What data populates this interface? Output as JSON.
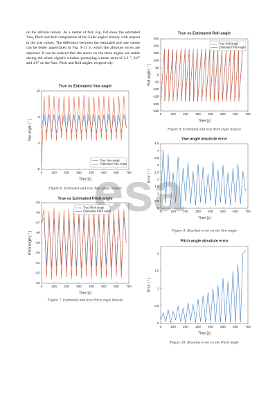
{
  "paragraph": "on the attitude history. As a matter of fact, Fig. 6-8 show the estimated Yaw, Pitch and Roll components of the Euler angles' history with respect to the true values. The difference between the estimated and true values can be better appreciated in Fig. 9-11 in which the absolute errors are depicted. It can be noticed that the errors on the three angles are stable during the whole signal's window portraying a mean error of 2.1 °, 0.6° and 4.9° on the Yaw, Pitch and Roll angles, respectively.",
  "watermark": "esa",
  "chart_data": [
    {
      "type": "line",
      "title": "True vs Estimated Yaw angle",
      "xlabel": "Time [s]",
      "ylabel": "Yaw angle [ ° ]",
      "caption": "Figure 6. Estimated and true Yaw angle history",
      "legend": "lower right",
      "x": [
        0,
        20,
        40,
        60,
        80,
        100,
        120,
        140,
        160,
        180,
        200,
        220,
        240,
        260,
        280,
        300,
        320,
        340,
        360,
        380,
        400,
        420,
        440,
        460,
        480,
        500,
        520,
        540,
        560,
        580,
        600,
        620,
        640,
        660,
        680
      ],
      "series": [
        {
          "name": "True Yaw angle",
          "color": "#3d7fc4",
          "values": [
            3,
            5.5,
            2,
            5.6,
            2.2,
            5.5,
            2,
            5.4,
            2.3,
            5.5,
            2.1,
            5.6,
            2,
            5.5,
            2.2,
            5.4,
            2,
            5.5,
            2.1,
            5.6,
            2.2,
            5.5,
            2,
            5.4,
            2.3,
            5.5,
            2.1,
            5.6,
            2,
            5.5,
            2.2,
            5.4,
            2,
            5.5,
            3
          ]
        },
        {
          "name": "Estimated Yaw Angle",
          "color": "#e0633a",
          "values": [
            -4,
            9,
            0.5,
            9.2,
            0.8,
            9,
            0.5,
            8.8,
            1,
            9,
            0.6,
            9.1,
            0.5,
            8.9,
            0.8,
            9,
            0.5,
            9.2,
            0.7,
            9,
            0.6,
            8.9,
            0.5,
            9,
            1,
            9.1,
            0.6,
            9,
            0.5,
            8.8,
            0.7,
            9,
            0.5,
            9.1,
            3
          ]
        }
      ],
      "xlim": [
        0,
        700
      ],
      "xticks": [
        0,
        100,
        200,
        300,
        400,
        500,
        600,
        700
      ],
      "ylim": [
        -5,
        10
      ],
      "yticks": [
        -5,
        0,
        5,
        10
      ]
    },
    {
      "type": "line",
      "title": "True vs Estimated Pitch angle",
      "xlabel": "Time [s]",
      "ylabel": "Pitch angle [ ° ]",
      "caption": "Figure 7. Estimated and true Pitch angle history",
      "legend": "upper center",
      "x": [
        0,
        20,
        40,
        60,
        80,
        100,
        120,
        140,
        160,
        180,
        200,
        220,
        240,
        260,
        280,
        300,
        320,
        340,
        360,
        380,
        400,
        420,
        440,
        460,
        480,
        500,
        520,
        540,
        560,
        580,
        600,
        620,
        640,
        660,
        680
      ],
      "series": [
        {
          "name": "True Pitch angle",
          "color": "#3d7fc4",
          "values": [
            -47,
            -46.5,
            -51.3,
            -46.4,
            -51.5,
            -46.6,
            -51.4,
            -46.5,
            -51.2,
            -46.4,
            -51.5,
            -46.6,
            -51.3,
            -46.5,
            -51.4,
            -46.4,
            -51.5,
            -46.6,
            -51.2,
            -46.5,
            -51.4,
            -46.4,
            -51.3,
            -46.6,
            -51.5,
            -46.5,
            -51.2,
            -46.4,
            -51.4,
            -46.6,
            -51.3,
            -46.5,
            -51.5,
            -46.4,
            -49
          ]
        },
        {
          "name": "Estimated Pitch Angle",
          "color": "#e0633a",
          "values": [
            -47,
            -45.6,
            -52.4,
            -45.8,
            -52.6,
            -45.5,
            -52.3,
            -45.9,
            -52.5,
            -45.7,
            -52.4,
            -45.6,
            -52.6,
            -45.8,
            -52.3,
            -45.5,
            -52.5,
            -45.7,
            -52.4,
            -45.9,
            -52.6,
            -45.6,
            -52.3,
            -45.8,
            -52.5,
            -45.7,
            -52.4,
            -45.5,
            -52.6,
            -45.8,
            -52.3,
            -45.6,
            -52.5,
            -45.7,
            -49
          ]
        }
      ],
      "xlim": [
        0,
        700
      ],
      "xticks": [
        0,
        100,
        200,
        300,
        400,
        500,
        600,
        700
      ],
      "ylim": [
        -53,
        -45
      ],
      "yticks": [
        -53,
        -52,
        -51,
        -50,
        -49,
        -48,
        -47,
        -46,
        -45
      ]
    },
    {
      "type": "line",
      "title": "True vs Estimated Roll angle",
      "xlabel": "Time [s]",
      "ylabel": "Roll angle [ ° ]",
      "caption": "Figure 8. Estimated and true Roll angle history",
      "legend": "upper right",
      "x": [
        0,
        31,
        33,
        64,
        66,
        97,
        99,
        130,
        132,
        163,
        165,
        196,
        198,
        229,
        231,
        262,
        264,
        295,
        297,
        328,
        330,
        361,
        363,
        394,
        396,
        427,
        429,
        460,
        462,
        493,
        495,
        526,
        528,
        559,
        561,
        592,
        594,
        625,
        627,
        658
      ],
      "series": [
        {
          "name": "True Roll angle",
          "color": "#3d7fc4",
          "values": [
            -180,
            180,
            -180,
            180,
            -180,
            180,
            -180,
            180,
            -180,
            180,
            -180,
            180,
            -180,
            180,
            -180,
            180,
            -180,
            180,
            -180,
            180,
            -180,
            180,
            -180,
            180,
            -180,
            180,
            -180,
            180,
            -180,
            180,
            -180,
            180,
            -180,
            180,
            -180,
            180,
            -180,
            180,
            -180,
            180
          ]
        },
        {
          "name": "Estimated Roll Angle",
          "color": "#e0633a",
          "values": [
            -185,
            175,
            -185,
            175,
            -185,
            175,
            -185,
            175,
            -185,
            175,
            -185,
            175,
            -185,
            175,
            -185,
            175,
            -185,
            175,
            -185,
            175,
            -185,
            175,
            -185,
            175,
            -185,
            175,
            -185,
            175,
            -185,
            175,
            -185,
            175,
            -185,
            175,
            -185,
            175,
            -185,
            175,
            -185,
            175
          ]
        }
      ],
      "xlim": [
        0,
        700
      ],
      "xticks": [
        0,
        100,
        200,
        300,
        400,
        500,
        600,
        700
      ],
      "ylim": [
        -250,
        250
      ],
      "yticks": [
        -250,
        -200,
        -150,
        -100,
        -50,
        0,
        50,
        100,
        150,
        200,
        250
      ]
    },
    {
      "type": "line",
      "title": "Yaw angle absolute error",
      "xlabel": "Time [s]",
      "ylabel": "Error [ ° ]",
      "caption": "Figure 9. Absolute error on the Yaw angle",
      "x": [
        0,
        20,
        40,
        60,
        80,
        100,
        120,
        140,
        160,
        180,
        200,
        220,
        240,
        260,
        280,
        300,
        320,
        340,
        360,
        380,
        400,
        420,
        440,
        460,
        480,
        500,
        520,
        540,
        560,
        580,
        600,
        620,
        640,
        660,
        680
      ],
      "series": [
        {
          "color": "#3d7fc4",
          "values": [
            0.5,
            4.1,
            0.3,
            3.8,
            0.2,
            2.5,
            0.4,
            3.6,
            0.1,
            2.8,
            0.5,
            3.2,
            0.3,
            2.6,
            0.2,
            3.1,
            0.4,
            2.9,
            0.3,
            2.4,
            0.5,
            3.3,
            0.2,
            2.7,
            0.4,
            3.0,
            0.3,
            2.5,
            0.2,
            2.8,
            0.4,
            3.1,
            0.3,
            2.6,
            1.2
          ]
        }
      ],
      "xlim": [
        0,
        700
      ],
      "xticks": [
        0,
        100,
        200,
        300,
        400,
        500,
        600,
        700
      ],
      "ylim": [
        0,
        4.5
      ],
      "yticks": [
        0,
        0.5,
        1,
        1.5,
        2,
        2.5,
        3,
        3.5,
        4,
        4.5
      ]
    },
    {
      "type": "line",
      "title": "Pitch angle absolute error",
      "xlabel": "Time [s]",
      "ylabel": "Error [ ° ]",
      "caption": "Figure 10. Absolute error on the Pitch angle",
      "x": [
        0,
        20,
        40,
        60,
        80,
        100,
        120,
        140,
        160,
        180,
        200,
        220,
        240,
        260,
        280,
        300,
        320,
        340,
        360,
        380,
        400,
        420,
        440,
        460,
        480,
        500,
        520,
        540,
        560,
        580,
        600,
        620,
        640,
        660,
        680
      ],
      "series": [
        {
          "color": "#3d7fc4",
          "values": [
            0.1,
            0.3,
            0.05,
            0.4,
            0.02,
            0.35,
            0.1,
            0.5,
            0.05,
            0.45,
            0.02,
            0.6,
            0.08,
            0.55,
            0.03,
            0.7,
            0.05,
            0.8,
            0.02,
            0.9,
            0.06,
            1.0,
            0.04,
            1.1,
            0.03,
            1.3,
            0.05,
            1.2,
            0.02,
            1.5,
            0.04,
            1.7,
            0.03,
            2.0,
            2.1
          ]
        }
      ],
      "xlim": [
        0,
        700
      ],
      "xticks": [
        0,
        100,
        200,
        300,
        400,
        500,
        600,
        700
      ],
      "ylim": [
        0,
        2.2
      ],
      "yticks": [
        0,
        0.5,
        1,
        1.5,
        2
      ]
    }
  ]
}
